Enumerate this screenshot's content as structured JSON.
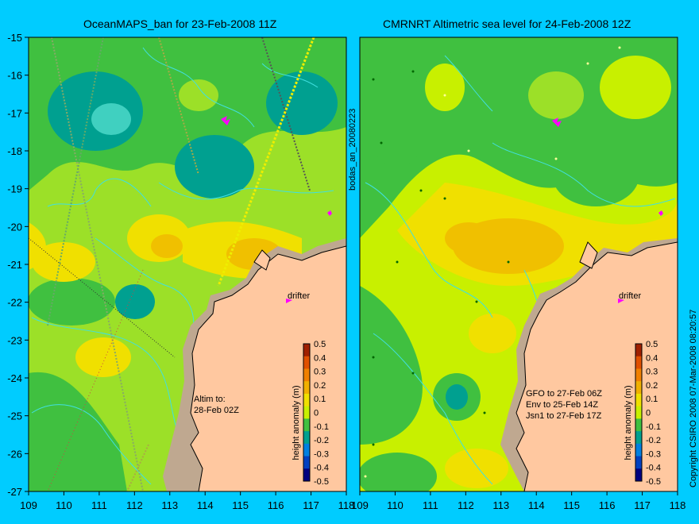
{
  "left_panel": {
    "title": "OceanMAPS_ban for 23-Feb-2008 11Z",
    "annotation_lines": [
      "Altim to:",
      "28-Feb 02Z"
    ],
    "drifter_label": "drifter"
  },
  "right_panel": {
    "title": "CMRNRT Altimetric sea level  for 24-Feb-2008 12Z",
    "annotation_lines": [
      "GFO to 27-Feb 06Z",
      "Env to 25-Feb 14Z",
      "Jsn1 to 27-Feb 17Z"
    ],
    "drifter_label": "drifter"
  },
  "side_label_left": "bodas_an_20080223",
  "side_label_right": "Copyright CSIRO 2008  07-Mar-2008 08:20:57",
  "axes": {
    "lon_ticks": [
      "109",
      "110",
      "111",
      "112",
      "113",
      "114",
      "115",
      "116",
      "117",
      "118"
    ],
    "lat_ticks": [
      "-15",
      "-16",
      "-17",
      "-18",
      "-19",
      "-20",
      "-21",
      "-22",
      "-23",
      "-24",
      "-25",
      "-26",
      "-27"
    ],
    "lon_range": [
      109,
      118
    ],
    "lat_range": [
      -27,
      -15
    ]
  },
  "colorbar": {
    "label": "height anomaly (m)",
    "ticks": [
      "0.5",
      "0.4",
      "0.3",
      "0.2",
      "0.1",
      "0",
      "-0.1",
      "-0.2",
      "-0.3",
      "-0.4",
      "-0.5"
    ],
    "colors": [
      "#a02000",
      "#e05000",
      "#f08000",
      "#f0b000",
      "#f0e000",
      "#c8f000",
      "#40c040",
      "#00a090",
      "#0080e0",
      "#0040c0",
      "#000080"
    ]
  },
  "colors": {
    "background": "#00ccff",
    "land": "#ffc8a0",
    "shelf": "#bfa890",
    "contour": "#40e0e0",
    "drifter": "#ff00ff"
  }
}
